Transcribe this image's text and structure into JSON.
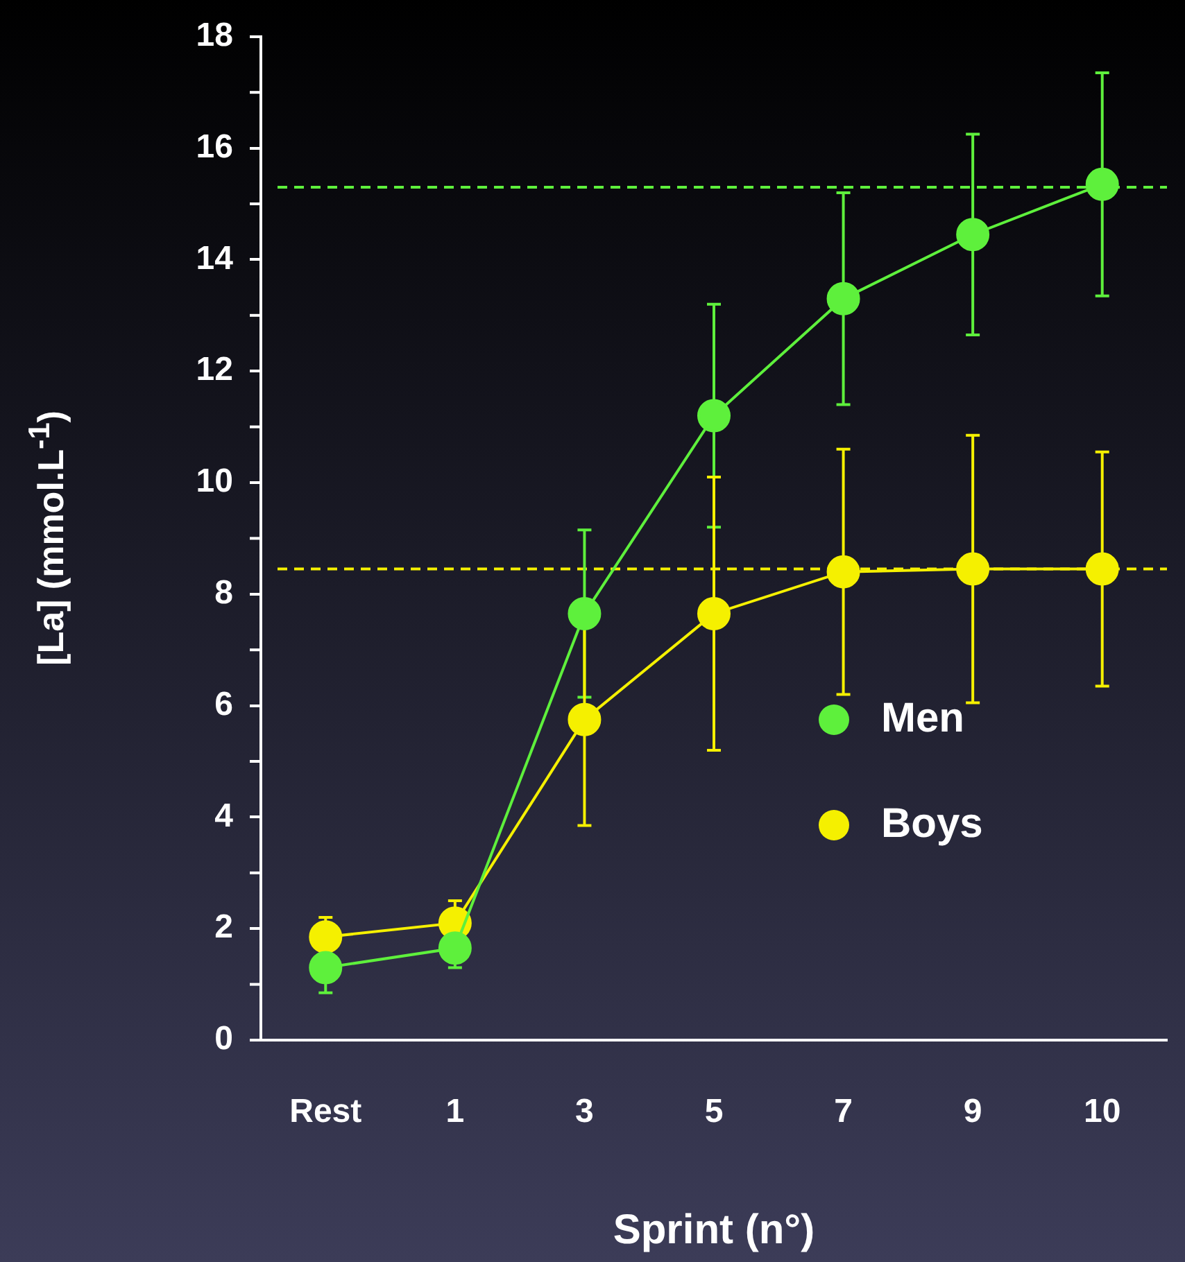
{
  "chart_data": {
    "type": "line",
    "xlabel": "Sprint (n°)",
    "ylabel": "[La] (mmol.L$^{-1}$)",
    "categories": [
      "Rest",
      "1",
      "3",
      "5",
      "7",
      "9",
      "10"
    ],
    "series": [
      {
        "name": "Men",
        "color": "#5ef03c",
        "values": [
          1.3,
          1.65,
          7.65,
          11.2,
          13.3,
          14.45,
          15.35
        ],
        "errors": [
          0.45,
          0.35,
          1.5,
          2.0,
          1.9,
          1.8,
          2.0
        ]
      },
      {
        "name": "Boys",
        "color": "#f5f000",
        "values": [
          1.85,
          2.1,
          5.75,
          7.65,
          8.4,
          8.45,
          8.45
        ],
        "errors": [
          0.35,
          0.4,
          1.9,
          2.45,
          2.2,
          2.4,
          2.1
        ]
      }
    ],
    "ylim": [
      0,
      18
    ],
    "yticks": [
      0,
      {
        "value": 1,
        "label": null
      },
      2,
      {
        "value": 3,
        "label": null
      },
      4,
      {
        "value": 5,
        "label": null
      },
      6,
      {
        "value": 7,
        "label": null
      },
      8,
      {
        "value": 9,
        "label": null
      },
      10,
      {
        "value": 11,
        "label": null
      },
      12,
      {
        "value": 13,
        "label": null
      },
      14,
      {
        "value": 15,
        "label": null
      },
      16,
      {
        "value": 17,
        "label": null
      },
      18
    ],
    "ref_lines": [
      {
        "axis": "y",
        "value": 15.3,
        "color": "#5ef03c",
        "line_style": "dashed"
      },
      {
        "axis": "y",
        "value": 8.45,
        "color": "#f5f000",
        "line_style": "dashed"
      }
    ],
    "legend": "bottom right",
    "marker": "circle"
  }
}
